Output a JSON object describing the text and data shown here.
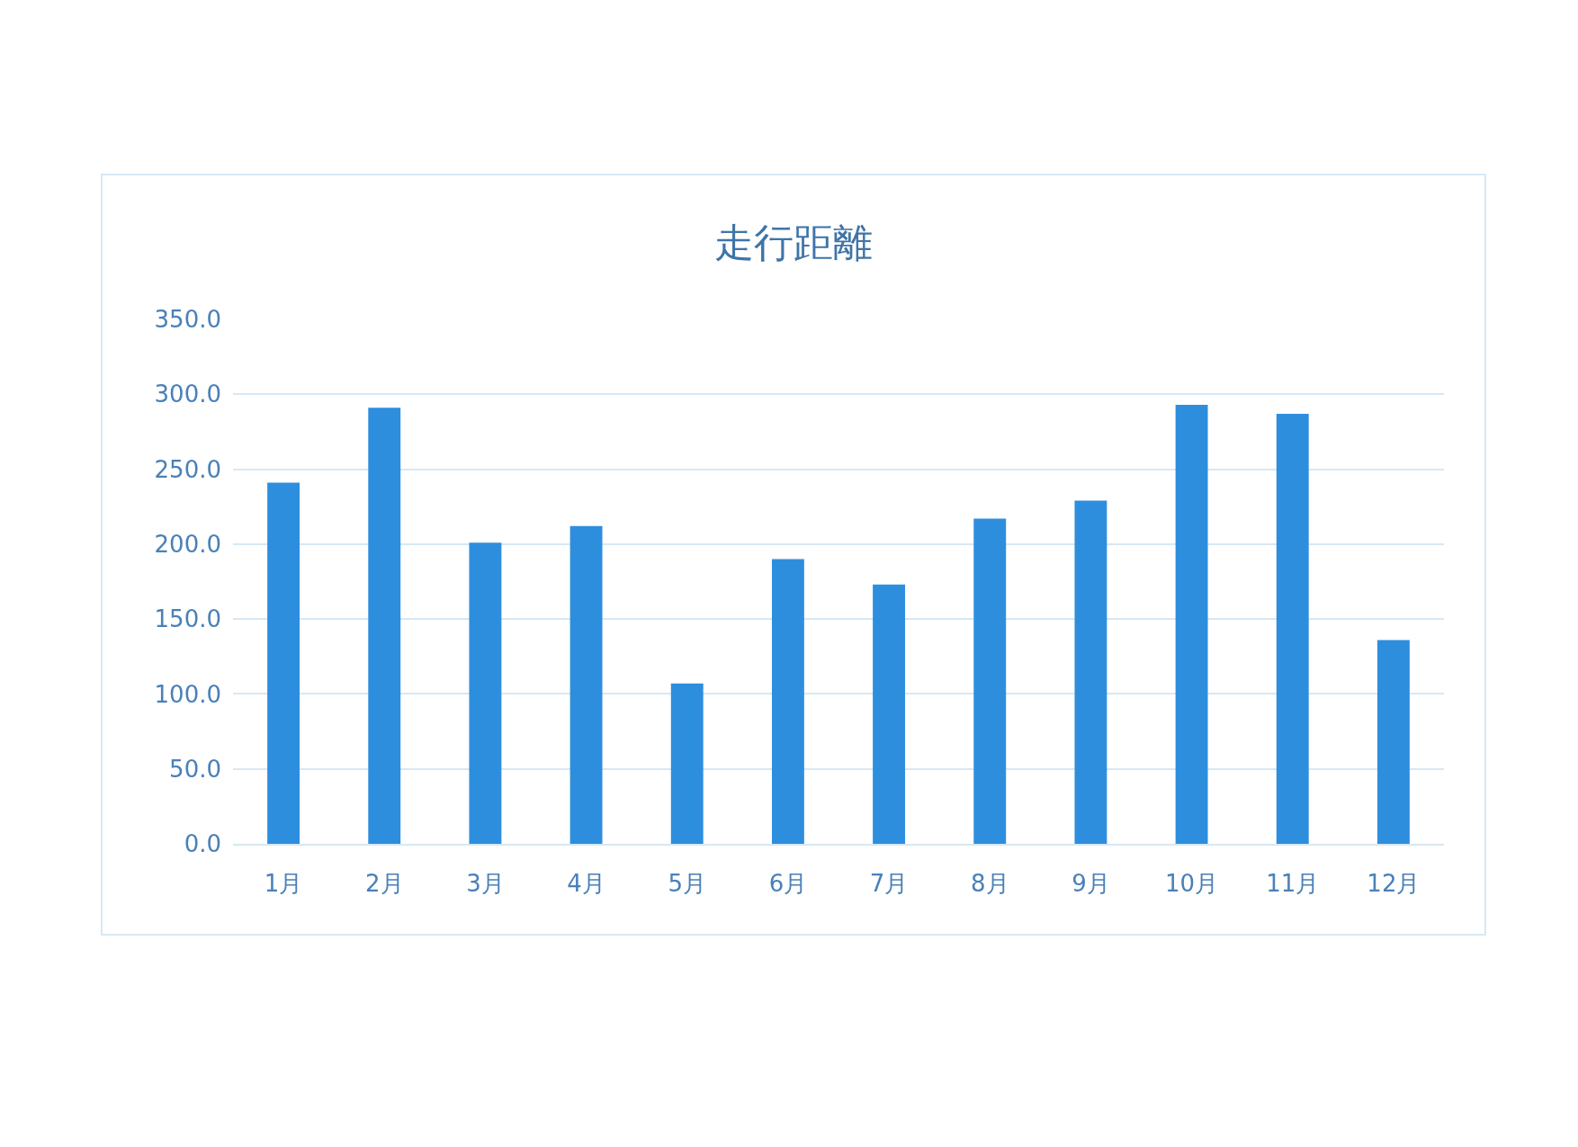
{
  "chart_data": {
    "type": "bar",
    "title": "走行距離",
    "categories": [
      "1月",
      "2月",
      "3月",
      "4月",
      "5月",
      "6月",
      "7月",
      "8月",
      "9月",
      "10月",
      "11月",
      "12月"
    ],
    "values": [
      241,
      291,
      201,
      212,
      107,
      190,
      173,
      217,
      229,
      293,
      287,
      136
    ],
    "color": "#2e8ede",
    "ylim": [
      0,
      350
    ],
    "yticks": [
      {
        "value": 0,
        "label": "0.0"
      },
      {
        "value": 50,
        "label": "50.0"
      },
      {
        "value": 100,
        "label": "100.0"
      },
      {
        "value": 150,
        "label": "150.0"
      },
      {
        "value": 200,
        "label": "200.0"
      },
      {
        "value": 250,
        "label": "250.0"
      },
      {
        "value": 300,
        "label": "300.0"
      },
      {
        "value": 350,
        "label": "350.0"
      }
    ],
    "grid": "y",
    "legend": false
  }
}
